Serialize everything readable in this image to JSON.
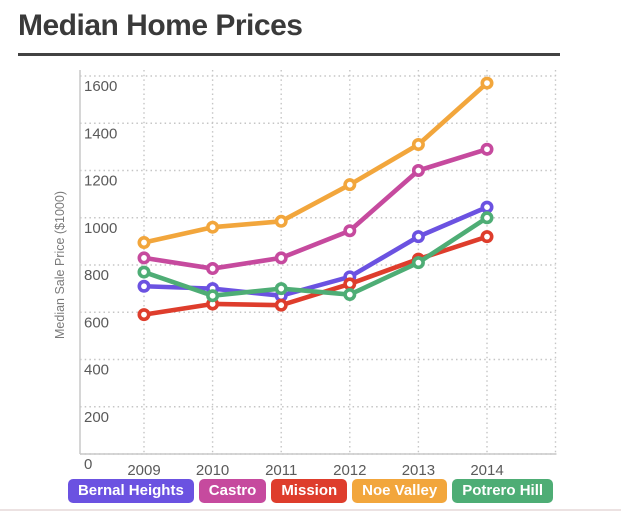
{
  "page": {
    "title": "Median Home Prices"
  },
  "chart_data": {
    "type": "line",
    "title": "Median Home Prices",
    "xlabel": "",
    "ylabel": "Median Sale Price ($1000)",
    "categories": [
      "2009",
      "2010",
      "2011",
      "2012",
      "2013",
      "2014"
    ],
    "ylim": [
      0,
      1700
    ],
    "yticks": [
      0,
      200,
      400,
      600,
      800,
      1000,
      1200,
      1400,
      1600
    ],
    "grid": "dotted",
    "legend_position": "bottom",
    "point_style": "open-circle",
    "series": [
      {
        "name": "Bernal Heights",
        "color": "#6b52e1",
        "values": [
          710,
          700,
          670,
          750,
          920,
          1045
        ]
      },
      {
        "name": "Castro",
        "color": "#c64a9e",
        "values": [
          830,
          785,
          830,
          945,
          1200,
          1290
        ]
      },
      {
        "name": "Mission",
        "color": "#de3d2c",
        "values": [
          590,
          635,
          630,
          720,
          825,
          920
        ]
      },
      {
        "name": "Noe Valley",
        "color": "#f2a63c",
        "values": [
          895,
          960,
          985,
          1140,
          1310,
          1570
        ]
      },
      {
        "name": "Potrero Hill",
        "color": "#4ead75",
        "values": [
          770,
          670,
          700,
          675,
          810,
          1000
        ]
      }
    ]
  }
}
